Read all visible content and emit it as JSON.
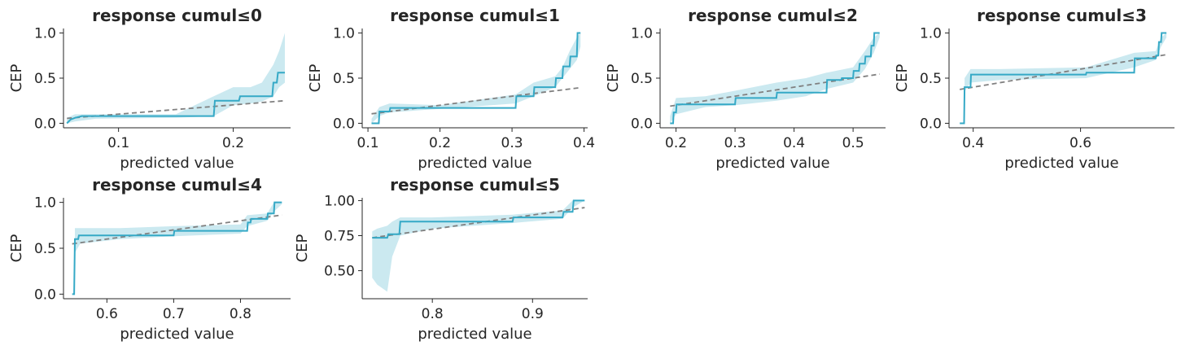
{
  "style": {
    "line_color": "#35a9c6",
    "band_color": "#cbe9f0",
    "diag_color": "#808080"
  },
  "chart_data": [
    {
      "type": "line",
      "title": "response cumul≤0",
      "xlabel": "predicted value",
      "ylabel": "CEP",
      "xlim": [
        0.052,
        0.25
      ],
      "ylim": [
        -0.05,
        1.05
      ],
      "xticks": [
        0.1,
        0.2
      ],
      "xtick_labels": [
        "0.1",
        "0.2"
      ],
      "yticks": [
        0.0,
        0.5,
        1.0
      ],
      "ytick_labels": [
        "0.0",
        "0.5",
        "1.0"
      ],
      "reference_line": [
        [
          0.055,
          0.055
        ],
        [
          0.245,
          0.25
        ]
      ],
      "step_x": [
        0.055,
        0.058,
        0.062,
        0.068,
        0.183,
        0.184,
        0.205,
        0.206,
        0.234,
        0.235,
        0.238,
        0.239,
        0.245
      ],
      "step_y": [
        0.0,
        0.04,
        0.06,
        0.08,
        0.08,
        0.25,
        0.25,
        0.3,
        0.3,
        0.45,
        0.45,
        0.56,
        0.56
      ],
      "band_x": [
        0.055,
        0.062,
        0.08,
        0.15,
        0.183,
        0.2,
        0.215,
        0.225,
        0.235,
        0.24,
        0.245
      ],
      "band_low": [
        0.0,
        0.02,
        0.05,
        0.06,
        0.08,
        0.2,
        0.22,
        0.24,
        0.3,
        0.4,
        0.45
      ],
      "band_high": [
        0.06,
        0.1,
        0.1,
        0.1,
        0.3,
        0.4,
        0.4,
        0.45,
        0.65,
        0.8,
        1.0
      ]
    },
    {
      "type": "line",
      "title": "response cumul≤1",
      "xlabel": "predicted value",
      "ylabel": "CEP",
      "xlim": [
        0.092,
        0.405
      ],
      "ylim": [
        -0.05,
        1.05
      ],
      "xticks": [
        0.1,
        0.2,
        0.3,
        0.4
      ],
      "xtick_labels": [
        "0.1",
        "0.2",
        "0.3",
        "0.4"
      ],
      "yticks": [
        0.0,
        0.5,
        1.0
      ],
      "ytick_labels": [
        "0.0",
        "0.5",
        "1.0"
      ],
      "reference_line": [
        [
          0.105,
          0.105
        ],
        [
          0.395,
          0.395
        ]
      ],
      "step_x": [
        0.105,
        0.115,
        0.116,
        0.13,
        0.131,
        0.305,
        0.306,
        0.33,
        0.331,
        0.36,
        0.361,
        0.37,
        0.371,
        0.38,
        0.381,
        0.39,
        0.391,
        0.395
      ],
      "step_y": [
        0.0,
        0.0,
        0.13,
        0.13,
        0.17,
        0.17,
        0.3,
        0.3,
        0.4,
        0.4,
        0.5,
        0.5,
        0.63,
        0.63,
        0.74,
        0.74,
        1.0,
        1.0
      ],
      "band_x": [
        0.105,
        0.116,
        0.13,
        0.2,
        0.305,
        0.33,
        0.36,
        0.37,
        0.38,
        0.39,
        0.395
      ],
      "band_low": [
        0.0,
        0.08,
        0.12,
        0.16,
        0.22,
        0.3,
        0.4,
        0.5,
        0.6,
        0.7,
        0.85
      ],
      "band_high": [
        0.05,
        0.18,
        0.22,
        0.2,
        0.32,
        0.45,
        0.52,
        0.62,
        0.8,
        0.95,
        1.0
      ]
    },
    {
      "type": "line",
      "title": "response cumul≤2",
      "xlabel": "predicted value",
      "ylabel": "CEP",
      "xlim": [
        0.173,
        0.555
      ],
      "ylim": [
        -0.05,
        1.05
      ],
      "xticks": [
        0.2,
        0.3,
        0.4,
        0.5
      ],
      "xtick_labels": [
        "0.2",
        "0.3",
        "0.4",
        "0.5"
      ],
      "yticks": [
        0.0,
        0.5,
        1.0
      ],
      "ytick_labels": [
        "0.0",
        "0.5",
        "1.0"
      ],
      "reference_line": [
        [
          0.19,
          0.19
        ],
        [
          0.545,
          0.545
        ]
      ],
      "step_x": [
        0.19,
        0.195,
        0.196,
        0.2,
        0.201,
        0.3,
        0.301,
        0.37,
        0.371,
        0.455,
        0.456,
        0.48,
        0.481,
        0.5,
        0.501,
        0.51,
        0.511,
        0.52,
        0.521,
        0.53,
        0.531,
        0.535,
        0.536,
        0.545
      ],
      "step_y": [
        0.0,
        0.0,
        0.12,
        0.12,
        0.21,
        0.21,
        0.28,
        0.28,
        0.34,
        0.34,
        0.48,
        0.48,
        0.5,
        0.5,
        0.58,
        0.58,
        0.66,
        0.66,
        0.74,
        0.74,
        0.86,
        0.86,
        1.0,
        1.0
      ],
      "band_x": [
        0.19,
        0.2,
        0.25,
        0.3,
        0.37,
        0.42,
        0.455,
        0.5,
        0.52,
        0.535,
        0.545
      ],
      "band_low": [
        0.0,
        0.1,
        0.18,
        0.2,
        0.25,
        0.3,
        0.38,
        0.45,
        0.6,
        0.78,
        0.95
      ],
      "band_high": [
        0.08,
        0.28,
        0.3,
        0.36,
        0.45,
        0.5,
        0.56,
        0.62,
        0.8,
        0.95,
        1.0
      ]
    },
    {
      "type": "line",
      "title": "response cumul≤3",
      "xlabel": "predicted value",
      "ylabel": "CEP",
      "xlim": [
        0.355,
        0.775
      ],
      "ylim": [
        -0.05,
        1.05
      ],
      "xticks": [
        0.4,
        0.6
      ],
      "xtick_labels": [
        "0.4",
        "0.6"
      ],
      "yticks": [
        0.0,
        0.5,
        1.0
      ],
      "ytick_labels": [
        "0.0",
        "0.5",
        "1.0"
      ],
      "reference_line": [
        [
          0.375,
          0.375
        ],
        [
          0.76,
          0.76
        ]
      ],
      "step_x": [
        0.375,
        0.383,
        0.384,
        0.395,
        0.396,
        0.61,
        0.611,
        0.7,
        0.701,
        0.74,
        0.741,
        0.745,
        0.746,
        0.75,
        0.751,
        0.76
      ],
      "step_y": [
        0.0,
        0.0,
        0.4,
        0.4,
        0.54,
        0.54,
        0.56,
        0.56,
        0.72,
        0.72,
        0.75,
        0.75,
        0.9,
        0.9,
        1.0,
        1.0
      ],
      "band_x": [
        0.384,
        0.395,
        0.45,
        0.61,
        0.7,
        0.74,
        0.75,
        0.76
      ],
      "band_low": [
        0.35,
        0.45,
        0.48,
        0.5,
        0.62,
        0.7,
        0.85,
        0.95
      ],
      "band_high": [
        0.5,
        0.6,
        0.6,
        0.62,
        0.78,
        0.8,
        0.95,
        1.0
      ]
    },
    {
      "type": "line",
      "title": "response cumul≤4",
      "xlabel": "predicted value",
      "ylabel": "CEP",
      "xlim": [
        0.535,
        0.875
      ],
      "ylim": [
        -0.05,
        1.05
      ],
      "xticks": [
        0.6,
        0.7,
        0.8
      ],
      "xtick_labels": [
        "0.6",
        "0.7",
        "0.8"
      ],
      "yticks": [
        0.0,
        0.5,
        1.0
      ],
      "ytick_labels": [
        "0.0",
        "0.5",
        "1.0"
      ],
      "reference_line": [
        [
          0.548,
          0.548
        ],
        [
          0.862,
          0.862
        ]
      ],
      "step_x": [
        0.548,
        0.551,
        0.552,
        0.557,
        0.558,
        0.7,
        0.701,
        0.81,
        0.811,
        0.815,
        0.816,
        0.84,
        0.841,
        0.85,
        0.851,
        0.862
      ],
      "step_y": [
        0.0,
        0.0,
        0.6,
        0.6,
        0.64,
        0.64,
        0.69,
        0.69,
        0.78,
        0.78,
        0.82,
        0.82,
        0.88,
        0.88,
        1.0,
        1.0
      ],
      "band_x": [
        0.552,
        0.56,
        0.62,
        0.7,
        0.8,
        0.81,
        0.84,
        0.85,
        0.862
      ],
      "band_low": [
        0.45,
        0.55,
        0.6,
        0.63,
        0.66,
        0.74,
        0.8,
        0.9,
        0.98
      ],
      "band_high": [
        0.72,
        0.72,
        0.72,
        0.74,
        0.76,
        0.86,
        0.88,
        1.0,
        1.0
      ]
    },
    {
      "type": "line",
      "title": "response cumul≤5",
      "xlabel": "predicted value",
      "ylabel": "CEP",
      "xlim": [
        0.73,
        0.955
      ],
      "ylim": [
        0.3,
        1.02
      ],
      "xticks": [
        0.8,
        0.9
      ],
      "xtick_labels": [
        "0.8",
        "0.9"
      ],
      "yticks": [
        0.5,
        0.75,
        1.0
      ],
      "ytick_labels": [
        "0.50",
        "0.75",
        "1.00"
      ],
      "reference_line": [
        [
          0.74,
          0.735
        ],
        [
          0.952,
          0.95
        ]
      ],
      "step_x": [
        0.74,
        0.755,
        0.756,
        0.767,
        0.768,
        0.88,
        0.881,
        0.93,
        0.931,
        0.94,
        0.941,
        0.952
      ],
      "step_y": [
        0.735,
        0.735,
        0.76,
        0.76,
        0.85,
        0.85,
        0.88,
        0.88,
        0.92,
        0.92,
        1.0,
        1.0
      ],
      "band_x": [
        0.74,
        0.745,
        0.755,
        0.76,
        0.768,
        0.8,
        0.88,
        0.93,
        0.94,
        0.952
      ],
      "band_low": [
        0.45,
        0.4,
        0.35,
        0.6,
        0.75,
        0.8,
        0.84,
        0.87,
        0.95,
        1.0
      ],
      "band_high": [
        0.78,
        0.8,
        0.82,
        0.85,
        0.88,
        0.88,
        0.9,
        0.93,
        1.0,
        1.0
      ]
    }
  ]
}
